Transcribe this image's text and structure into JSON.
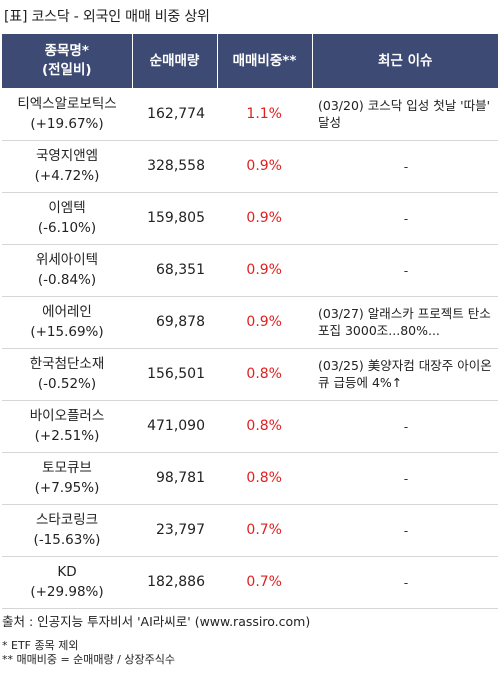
{
  "title": "[표] 코스닥 - 외국인 매매 비중 상위",
  "columns": {
    "name_line1": "종목명*",
    "name_line2": "(전일비)",
    "volume": "순매매량",
    "ratio": "매매비중**",
    "issue": "최근 이슈"
  },
  "rows": [
    {
      "name": "티엑스알로보틱스",
      "change": "(+19.67%)",
      "volume": "162,774",
      "ratio": "1.1%",
      "issue": "(03/20) 코스닥 입성 첫날 '따블' 달성"
    },
    {
      "name": "국영지앤엠",
      "change": "(+4.72%)",
      "volume": "328,558",
      "ratio": "0.9%",
      "issue": "-"
    },
    {
      "name": "이엠텍",
      "change": "(-6.10%)",
      "volume": "159,805",
      "ratio": "0.9%",
      "issue": "-"
    },
    {
      "name": "위세아이텍",
      "change": "(-0.84%)",
      "volume": "68,351",
      "ratio": "0.9%",
      "issue": "-"
    },
    {
      "name": "에어레인",
      "change": "(+15.69%)",
      "volume": "69,878",
      "ratio": "0.9%",
      "issue": "(03/27) 알래스카 프로젝트 탄소포집 3000조...80%..."
    },
    {
      "name": "한국첨단소재",
      "change": "(-0.52%)",
      "volume": "156,501",
      "ratio": "0.8%",
      "issue": "(03/25) 美양자컴 대장주 아이온큐 급등에 4%↑"
    },
    {
      "name": "바이오플러스",
      "change": "(+2.51%)",
      "volume": "471,090",
      "ratio": "0.8%",
      "issue": "-"
    },
    {
      "name": "토모큐브",
      "change": "(+7.95%)",
      "volume": "98,781",
      "ratio": "0.8%",
      "issue": "-"
    },
    {
      "name": "스타코링크",
      "change": "(-15.63%)",
      "volume": "23,797",
      "ratio": "0.7%",
      "issue": "-"
    },
    {
      "name": "KD",
      "change": "(+29.98%)",
      "volume": "182,886",
      "ratio": "0.7%",
      "issue": "-"
    }
  ],
  "footer": {
    "source": "출처 : 인공지능 투자비서 'AI라씨로' (www.rassiro.com)",
    "note1": "* ETF 종목 제외",
    "note2": "** 매매비중 = 순매매량 / 상장주식수"
  },
  "colors": {
    "header_bg": "#3c4a74",
    "ratio_text": "#e02020",
    "row_divider": "#d6d6d6"
  }
}
